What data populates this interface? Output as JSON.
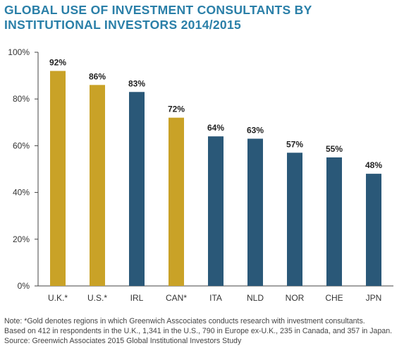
{
  "title_lines": [
    "GLOBAL USE OF INVESTMENT CONSULTANTS BY",
    "INSTITUTIONAL INVESTORS 2014/2015"
  ],
  "chart_data": {
    "type": "bar",
    "categories": [
      "U.K.*",
      "U.S.*",
      "IRL",
      "CAN*",
      "ITA",
      "NLD",
      "NOR",
      "CHE",
      "JPN"
    ],
    "values": [
      92,
      86,
      83,
      72,
      64,
      63,
      57,
      55,
      48
    ],
    "data_labels": [
      "92%",
      "86%",
      "83%",
      "72%",
      "64%",
      "63%",
      "57%",
      "55%",
      "48%"
    ],
    "highlight": [
      true,
      true,
      false,
      true,
      false,
      false,
      false,
      false,
      false
    ],
    "colors": {
      "gold": "#c9a227",
      "blue": "#2a5878"
    },
    "ylim": [
      0,
      100
    ],
    "yticks": [
      0,
      20,
      40,
      60,
      80,
      100
    ],
    "ytick_labels": [
      "0%",
      "20%",
      "40%",
      "60%",
      "80%",
      "100%"
    ],
    "grid": false
  },
  "notes": [
    "Note: *Gold denotes regions in which Greenwich Asscociates conducts research with investment consultants.",
    "Based on 412 in respondents in the U.K., 1,341 in the U.S., 790 in Europe ex-U.K., 235 in Canada, and 357 in Japan.",
    "Source: Greenwich Associates 2015 Global Institutional Investors Study"
  ]
}
